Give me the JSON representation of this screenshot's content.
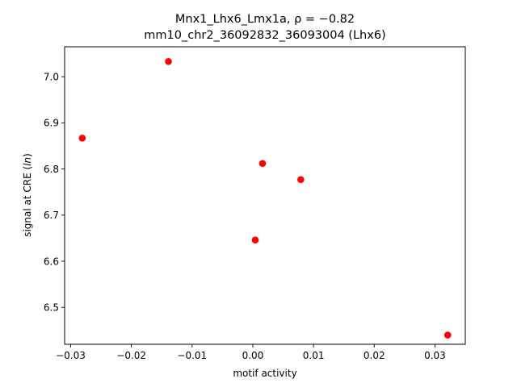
{
  "chart_data": {
    "type": "scatter",
    "title_line1": "Mnx1_Lhx6_Lmx1a, ",
    "title_rho": "ρ = −0.82",
    "title_line2": "mm10_chr2_36092832_36093004 (Lhx6)",
    "xlabel": "motif activity",
    "ylabel_prefix": "signal at CRE (",
    "ylabel_ln": "ln",
    "ylabel_suffix": ")",
    "xlim": [
      -0.031,
      0.035
    ],
    "ylim": [
      6.42,
      7.065
    ],
    "x_ticks": [
      -0.03,
      -0.02,
      -0.01,
      0.0,
      0.01,
      0.02,
      0.03
    ],
    "x_tick_labels": [
      "−0.03",
      "−0.02",
      "−0.01",
      "0.00",
      "0.01",
      "0.02",
      "0.03"
    ],
    "y_ticks": [
      6.5,
      6.6,
      6.7,
      6.8,
      6.9,
      7.0
    ],
    "y_tick_labels": [
      "6.5",
      "6.6",
      "6.7",
      "6.8",
      "6.9",
      "7.0"
    ],
    "point_color": "#ff0000",
    "grid": false,
    "points": [
      {
        "x": -0.0281,
        "y": 6.867
      },
      {
        "x": -0.0139,
        "y": 7.033
      },
      {
        "x": 0.0016,
        "y": 6.812
      },
      {
        "x": 0.0079,
        "y": 6.777
      },
      {
        "x": 0.0004,
        "y": 6.646
      },
      {
        "x": 0.0321,
        "y": 6.44
      }
    ]
  }
}
